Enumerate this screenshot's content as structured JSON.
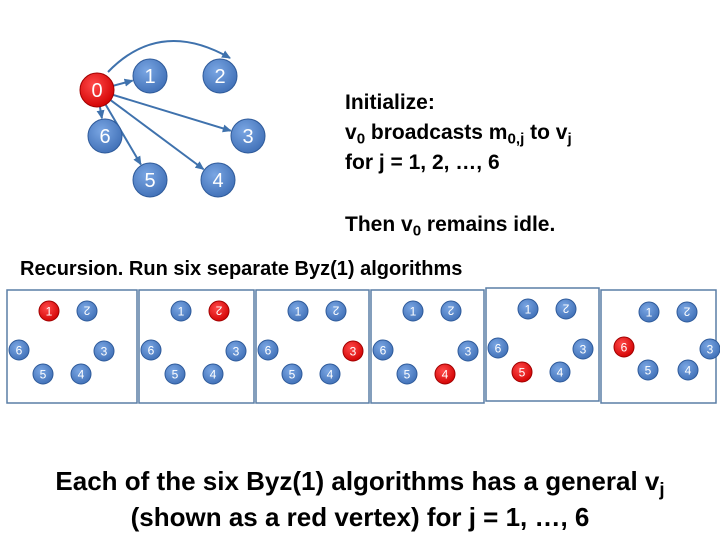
{
  "main_graph": {
    "source": "0",
    "nodes": [
      "0",
      "1",
      "2",
      "3",
      "4",
      "5",
      "6"
    ],
    "edges": [
      [
        "0",
        "1"
      ],
      [
        "0",
        "2"
      ],
      [
        "0",
        "3"
      ],
      [
        "0",
        "4"
      ],
      [
        "0",
        "5"
      ],
      [
        "0",
        "6"
      ]
    ]
  },
  "init_text": {
    "line1": "Initialize:",
    "line2_a": "v",
    "line2_a_sub": "0",
    "line2_b": " broadcasts m",
    "line2_b_sub": "0,j",
    "line2_c": " to v",
    "line2_c_sub": "j",
    "line3": "for j = 1, 2, …, 6"
  },
  "idle_text": {
    "a": "Then v",
    "sub": "0",
    "b": " remains idle."
  },
  "recursion_text": "Recursion. Run six separate Byz(1) algorithms",
  "subgraphs": [
    {
      "general": "1",
      "nodes": [
        "1",
        "2",
        "3",
        "4",
        "5",
        "6"
      ]
    },
    {
      "general": "2",
      "nodes": [
        "1",
        "2",
        "3",
        "4",
        "5",
        "6"
      ]
    },
    {
      "general": "3",
      "nodes": [
        "1",
        "2",
        "3",
        "4",
        "5",
        "6"
      ]
    },
    {
      "general": "4",
      "nodes": [
        "1",
        "2",
        "3",
        "4",
        "5",
        "6"
      ]
    },
    {
      "general": "5",
      "nodes": [
        "1",
        "2",
        "3",
        "4",
        "5",
        "6"
      ]
    },
    {
      "general": "6",
      "nodes": [
        "1",
        "2",
        "3",
        "4",
        "5",
        "6"
      ]
    }
  ],
  "bottom_text": {
    "line1_a": "Each of the six Byz(1) algorithms has a general v",
    "line1_sub": "j",
    "line2": "(shown as a red vertex) for j = 1, …, 6"
  },
  "colors": {
    "node": "#4a7cc4",
    "general": "#e00000",
    "edge": "#3f72ad",
    "box": "#5a7ea6",
    "node_text": "#ffffff"
  }
}
